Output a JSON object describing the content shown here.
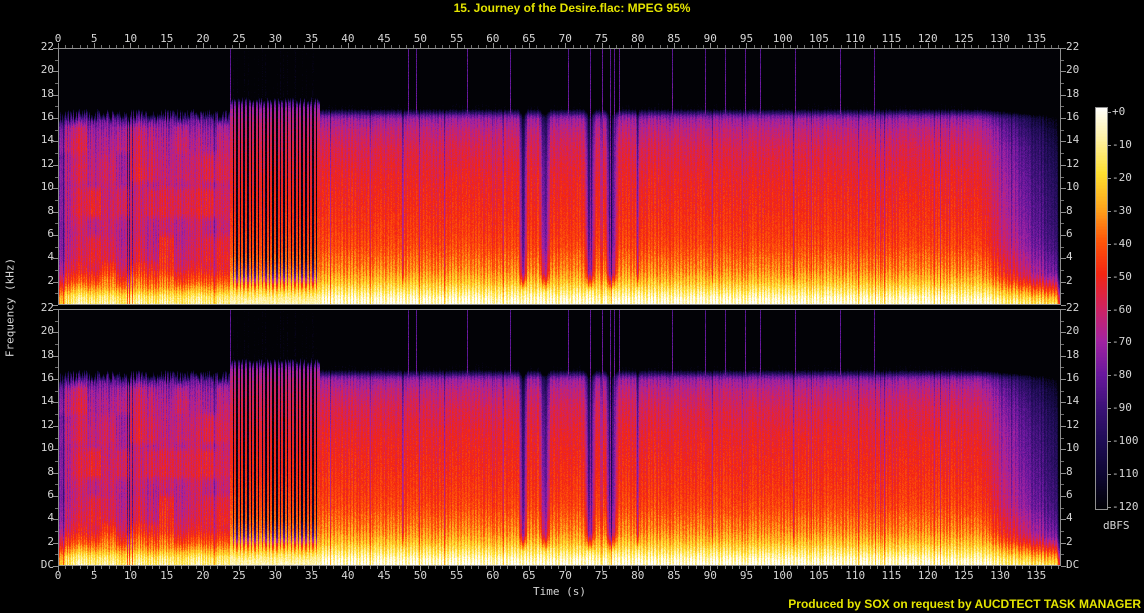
{
  "header": {
    "title": "15. Journey of the Desire.flac: MPEG 95%",
    "title_color": "#e4e400"
  },
  "footer": {
    "credit": "Produced by SOX on request by AUCDTECT TASK MANAGER",
    "color": "#e4e400"
  },
  "axes": {
    "x_label": "Time (s)",
    "y_label": "Frequency (kHz)",
    "text_color": "#d6d6d6",
    "tick_color": "#8f8f8f",
    "frame_color": "#8f8f8f",
    "time_ticks_s": [
      0,
      5,
      10,
      15,
      20,
      25,
      30,
      35,
      40,
      45,
      50,
      55,
      60,
      65,
      70,
      75,
      80,
      85,
      90,
      95,
      100,
      105,
      110,
      115,
      120,
      125,
      130,
      135
    ],
    "time_minor_step_s": 1,
    "freq_ticks_khz": [
      22,
      20,
      18,
      16,
      14,
      12,
      10,
      8,
      6,
      4,
      2
    ],
    "freq_minor_step_khz": 1,
    "dc_label": "DC"
  },
  "colorbar": {
    "unit_label": "dBFS",
    "tick_labels": [
      "+0",
      "-10",
      "-20",
      "-30",
      "-40",
      "-50",
      "-60",
      "-70",
      "-80",
      "-90",
      "-100",
      "-110",
      "-120"
    ],
    "stops": [
      {
        "db": 0,
        "color": "#ffffff"
      },
      {
        "db": -10,
        "color": "#fff1a0"
      },
      {
        "db": -20,
        "color": "#ffdf30"
      },
      {
        "db": -30,
        "color": "#ffa81e"
      },
      {
        "db": -40,
        "color": "#ff570a"
      },
      {
        "db": -50,
        "color": "#f42613"
      },
      {
        "db": -60,
        "color": "#d02360"
      },
      {
        "db": -70,
        "color": "#a223a2"
      },
      {
        "db": -80,
        "color": "#69189d"
      },
      {
        "db": -90,
        "color": "#3c1277"
      },
      {
        "db": -100,
        "color": "#1f0d55"
      },
      {
        "db": -110,
        "color": "#0e0732"
      },
      {
        "db": -120,
        "color": "#020206"
      }
    ]
  },
  "chart_data": {
    "type": "heatmap",
    "subtype": "audio-spectrogram",
    "channels": [
      "left",
      "right"
    ],
    "duration_s": 138.4,
    "freq_range_khz": [
      0,
      22
    ],
    "db_range": [
      -120,
      0
    ],
    "lowpass_cutoff_khz": 16.3,
    "segments": [
      {
        "name": "intro",
        "t0": 0,
        "t1": 23.8,
        "desc": "quiet striped verse, energy up to ~16 kHz, purple/magenta banded patches, warm orange-yellow base"
      },
      {
        "name": "rhythmic-build",
        "t0": 23.8,
        "t1": 36.2,
        "desc": "isolated beat columns ~2 per second reaching ~17.5 kHz with black gaps"
      },
      {
        "name": "dense-body",
        "t0": 36.2,
        "t1": 127,
        "desc": "loud continuous music, sharp MPEG lowpass cutoff ~16.3 kHz, fine vertical beat striping"
      },
      {
        "name": "fade-out",
        "t0": 127,
        "t1": 138.4,
        "desc": "progressive fade to silence at track end"
      }
    ],
    "spectral_envelope_db": {
      "dense": [
        [
          0,
          -4
        ],
        [
          0.6,
          -8
        ],
        [
          1.2,
          -16
        ],
        [
          2,
          -26
        ],
        [
          3,
          -34
        ],
        [
          5,
          -42
        ],
        [
          8,
          -47
        ],
        [
          11,
          -51
        ],
        [
          13.5,
          -56
        ],
        [
          15,
          -62
        ],
        [
          15.9,
          -69
        ],
        [
          16.2,
          -78
        ],
        [
          16.5,
          -98
        ],
        [
          16.8,
          -120
        ],
        [
          22,
          -122
        ]
      ],
      "intro": [
        [
          0,
          -7
        ],
        [
          0.7,
          -13
        ],
        [
          1.3,
          -26
        ],
        [
          2,
          -40
        ],
        [
          3,
          -52
        ],
        [
          4,
          -57
        ],
        [
          6,
          -61
        ],
        [
          8,
          -59
        ],
        [
          10,
          -61
        ],
        [
          12,
          -63
        ],
        [
          14,
          -67
        ],
        [
          15,
          -71
        ],
        [
          15.8,
          -79
        ],
        [
          16.4,
          -94
        ],
        [
          16.9,
          -120
        ],
        [
          22,
          -122
        ]
      ],
      "beat_on": [
        [
          0,
          -5
        ],
        [
          0.7,
          -10
        ],
        [
          1.3,
          -18
        ],
        [
          2,
          -28
        ],
        [
          3,
          -36
        ],
        [
          5,
          -43
        ],
        [
          8,
          -49
        ],
        [
          11,
          -53
        ],
        [
          13.5,
          -57
        ],
        [
          15,
          -61
        ],
        [
          16,
          -65
        ],
        [
          16.8,
          -71
        ],
        [
          17.3,
          -84
        ],
        [
          17.8,
          -112
        ],
        [
          22,
          -122
        ]
      ],
      "beat_off": [
        [
          0,
          -8
        ],
        [
          0.6,
          -14
        ],
        [
          1,
          -24
        ],
        [
          1.6,
          -44
        ],
        [
          2.5,
          -84
        ],
        [
          4,
          -112
        ],
        [
          22,
          -122
        ]
      ]
    },
    "full_height_spikes_s": [
      23.8,
      48.3,
      49.4,
      56.4,
      62.4,
      70.4,
      73.4,
      75.1,
      76.2,
      76.7,
      77.4,
      84.7,
      89.3,
      92.1,
      94.8,
      96.9,
      101.7,
      107.9,
      112.6
    ],
    "dropout_dips": [
      {
        "t": 47.6,
        "w": 0.5,
        "db": 20
      },
      {
        "t": 64.2,
        "w": 1.4,
        "db": 38
      },
      {
        "t": 67.2,
        "w": 2.0,
        "db": 30
      },
      {
        "t": 73.4,
        "w": 1.8,
        "db": 40
      },
      {
        "t": 76.4,
        "w": 2.2,
        "db": 36
      },
      {
        "t": 80.0,
        "w": 0.7,
        "db": 26
      },
      {
        "t": 90.3,
        "w": 0.4,
        "db": 14
      },
      {
        "t": 101.5,
        "w": 0.4,
        "db": 14
      }
    ],
    "fade_out_start_s": 127
  }
}
